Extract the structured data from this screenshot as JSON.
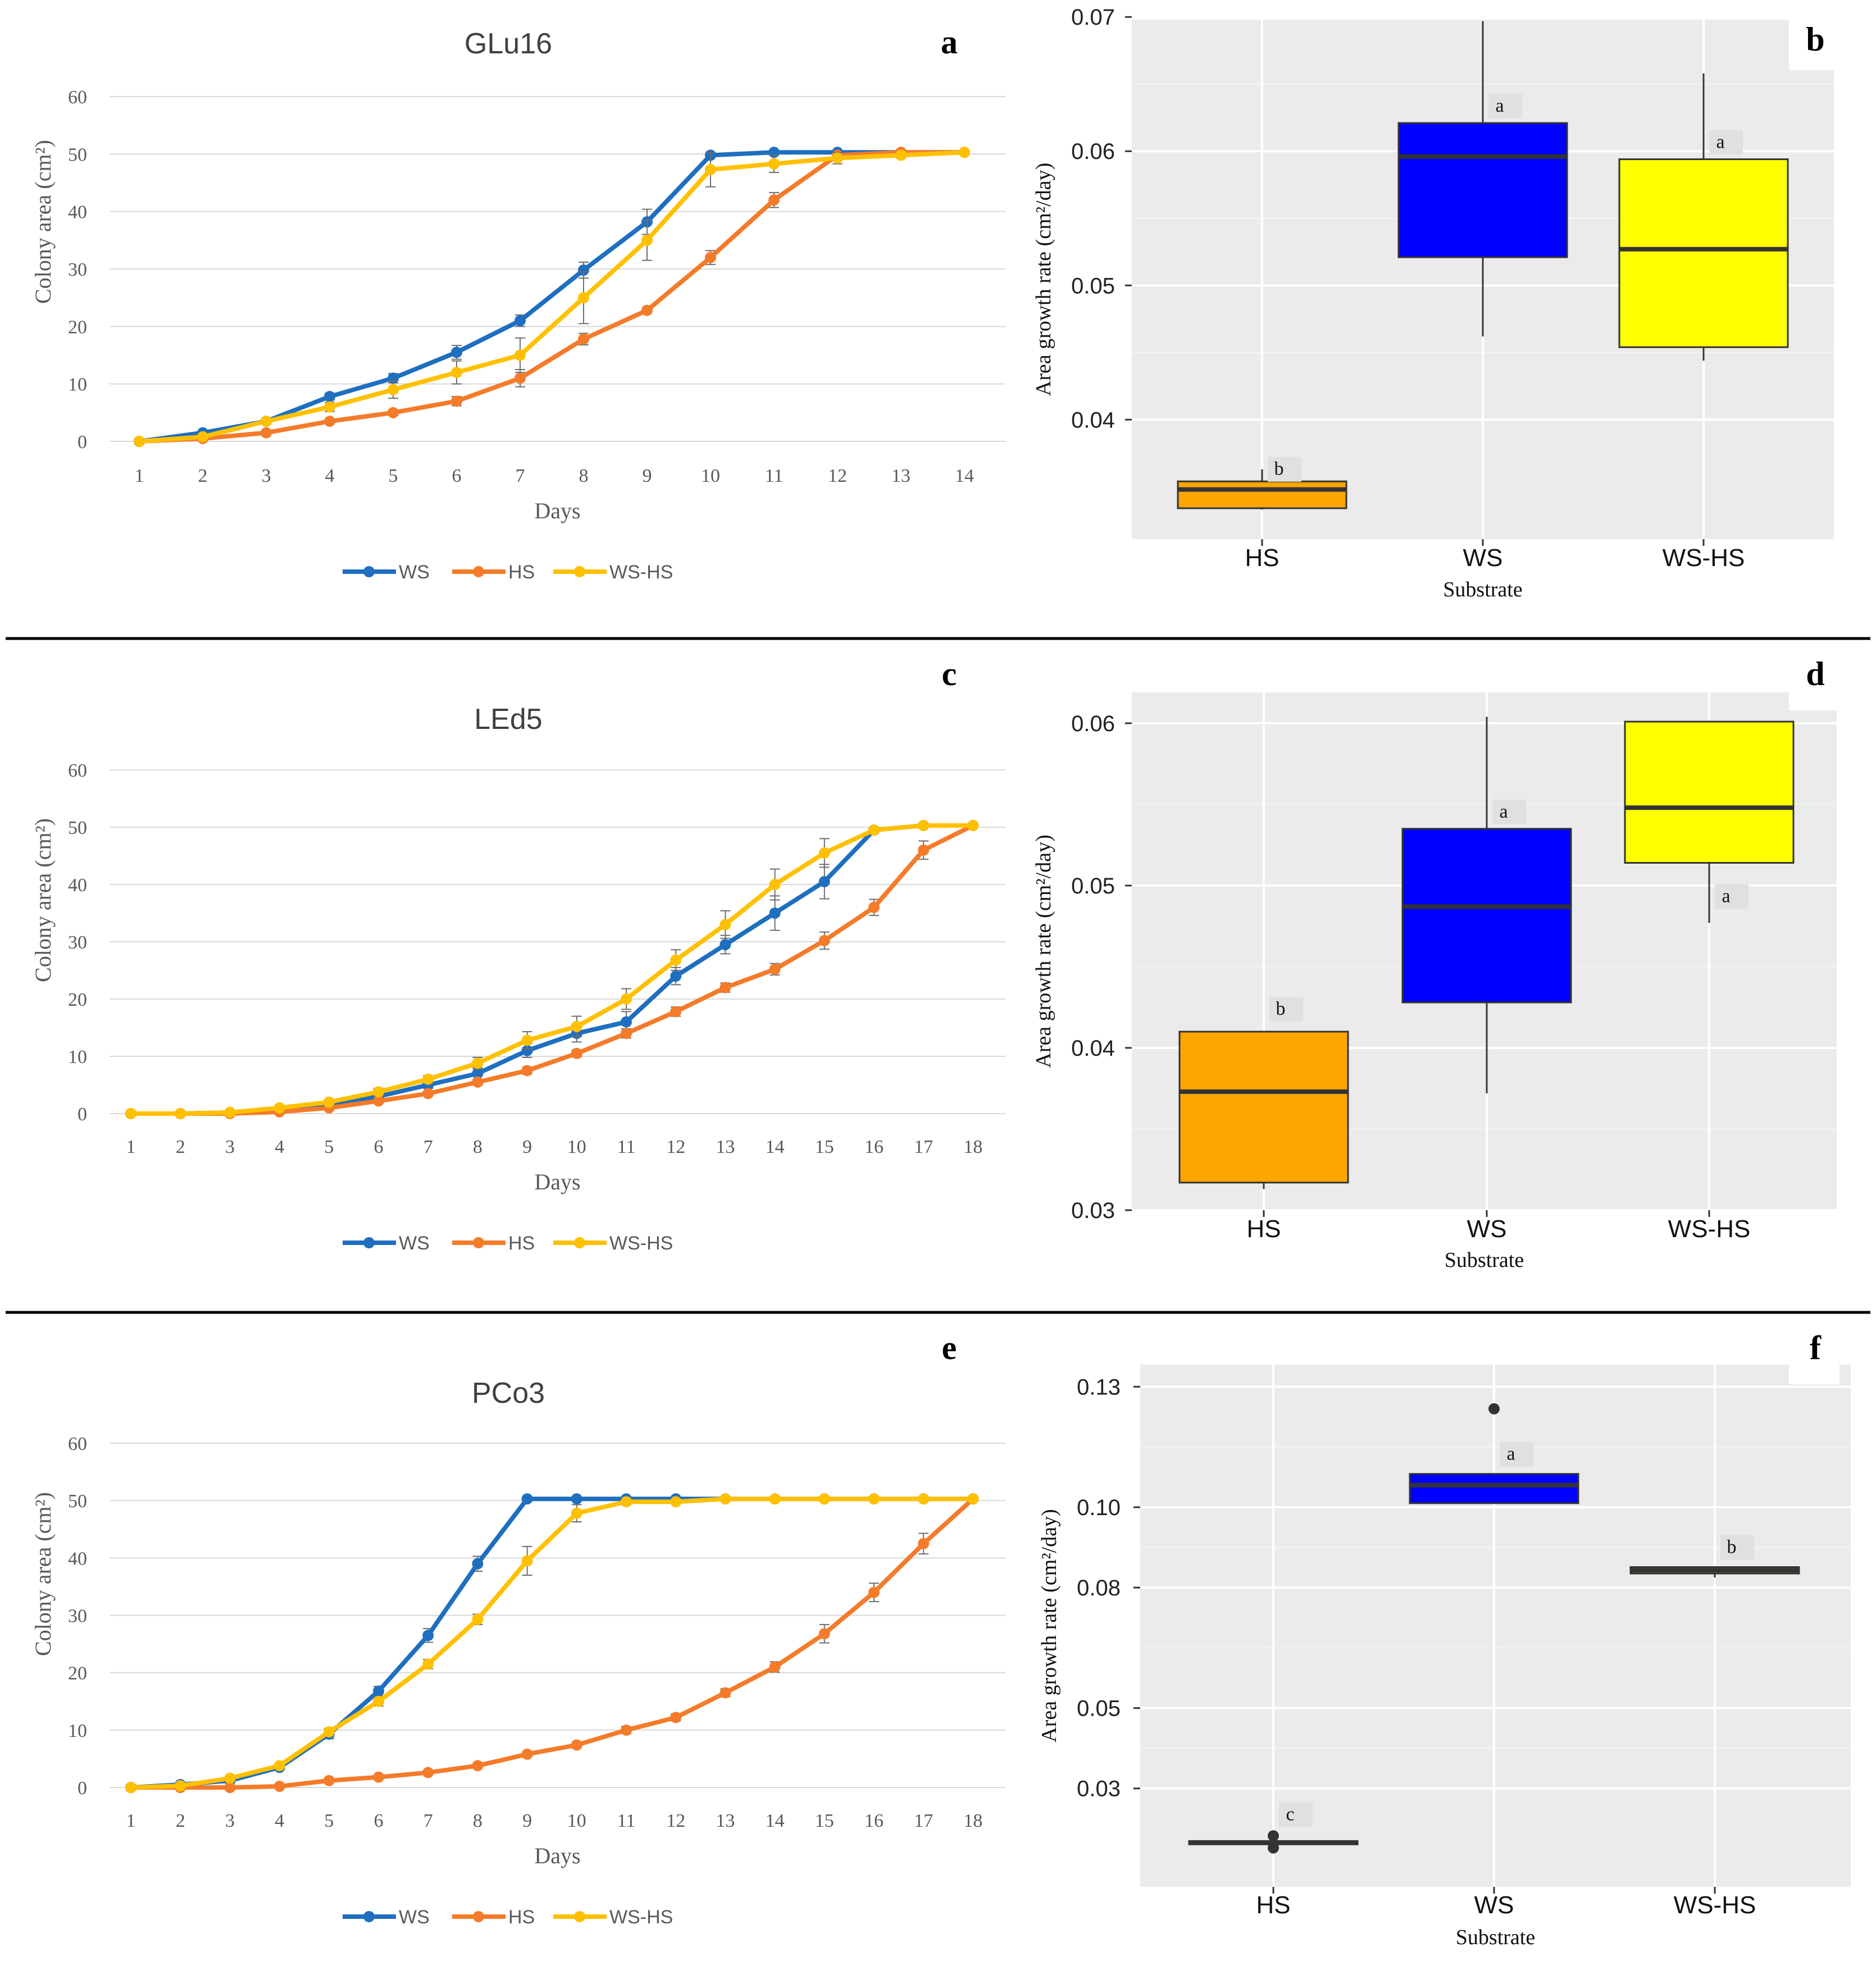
{
  "colors": {
    "WS": "#1f6fc0",
    "HS": "#f47b2a",
    "WS-HS": "#ffc000",
    "box_HS": "#ffa500",
    "box_WS": "#0000ff",
    "box_WSHS": "#ffff00",
    "box_WSHS_f": "#8b8b2a"
  },
  "chart_data": [
    {
      "panel": "a",
      "type": "line",
      "title": "GLu16",
      "xlabel": "Days",
      "ylabel": "Colony area (cm²)",
      "x": [
        1,
        2,
        3,
        4,
        5,
        6,
        7,
        8,
        9,
        10,
        11,
        12,
        13,
        14
      ],
      "ylim": [
        0,
        60
      ],
      "yticks": [
        0,
        10,
        20,
        30,
        40,
        50,
        60
      ],
      "series": [
        {
          "name": "WS",
          "values": [
            0,
            1.5,
            3.5,
            7.8,
            11,
            15.5,
            21,
            29.8,
            38.2,
            49.8,
            50.3,
            50.3,
            50.3,
            50.3
          ],
          "err": [
            0.5,
            0.3,
            0.4,
            0.6,
            0.8,
            1.2,
            1,
            1.4,
            2.2,
            0.3,
            0.2,
            0.2,
            0.2,
            0.2
          ]
        },
        {
          "name": "HS",
          "values": [
            0,
            0.5,
            1.5,
            3.5,
            5,
            7,
            11,
            17.8,
            22.8,
            32,
            42,
            49.8,
            50.3,
            50.3
          ],
          "err": [
            0.3,
            0.2,
            0.3,
            0.4,
            0.5,
            0.8,
            1.5,
            1,
            0.5,
            1.2,
            1.3,
            0.5,
            0.2,
            0.2
          ]
        },
        {
          "name": "WS-HS",
          "values": [
            0,
            0.8,
            3.5,
            6,
            9,
            12,
            15,
            25,
            35,
            47.3,
            48.3,
            49.3,
            49.8,
            50.3
          ],
          "err": [
            0.3,
            0.3,
            0.5,
            0.8,
            1.5,
            2,
            3,
            4.5,
            3.5,
            3,
            1.5,
            1,
            0.5,
            0.2
          ]
        }
      ]
    },
    {
      "panel": "b",
      "type": "box",
      "xlabel": "Substrate",
      "ylabel": "Area growth rate (cm²/day)",
      "ylim": [
        0.0311,
        0.0698
      ],
      "yticks": [
        0.04,
        0.05,
        0.06,
        0.07
      ],
      "ytick_labels": [
        "0.04",
        "0.05",
        "0.06",
        "0.07"
      ],
      "categories": [
        "HS",
        "WS",
        "WS-HS"
      ],
      "boxes": [
        {
          "name": "HS",
          "whisker_low": 0.0333,
          "q1": 0.0334,
          "median": 0.0348,
          "q3": 0.0354,
          "whisker_high": 0.0363,
          "letter": "b"
        },
        {
          "name": "WS",
          "whisker_low": 0.0462,
          "q1": 0.0521,
          "median": 0.0596,
          "q3": 0.0621,
          "whisker_high": 0.0697,
          "letter": "a"
        },
        {
          "name": "WS-HS",
          "whisker_low": 0.0444,
          "q1": 0.0454,
          "median": 0.0527,
          "q3": 0.0594,
          "whisker_high": 0.0658,
          "letter": "a"
        }
      ]
    },
    {
      "panel": "c",
      "type": "line",
      "title": "LEd5",
      "xlabel": "Days",
      "ylabel": "Colony area (cm²)",
      "x": [
        1,
        2,
        3,
        4,
        5,
        6,
        7,
        8,
        9,
        10,
        11,
        12,
        13,
        14,
        15,
        16,
        17,
        18
      ],
      "ylim": [
        0,
        60
      ],
      "yticks": [
        0,
        10,
        20,
        30,
        40,
        50,
        60
      ],
      "series": [
        {
          "name": "WS",
          "values": [
            0,
            0,
            0.2,
            0.8,
            1.5,
            3,
            5,
            7,
            11,
            14,
            16,
            24,
            29.5,
            35,
            40.5,
            49.5,
            50.3,
            50.3
          ],
          "err": [
            0.4,
            0.1,
            0.1,
            0.2,
            0.3,
            0.5,
            0.6,
            1,
            1.2,
            1.5,
            1.8,
            1.5,
            1.6,
            3,
            3,
            0.5,
            0.3,
            0.2
          ]
        },
        {
          "name": "HS",
          "values": [
            0,
            0,
            0,
            0.3,
            1,
            2.2,
            3.5,
            5.5,
            7.5,
            10.5,
            14,
            17.8,
            22,
            25.2,
            30.2,
            36,
            46,
            50.3
          ],
          "err": [
            0.1,
            0.1,
            0.1,
            0.2,
            0.2,
            0.3,
            0.4,
            0.5,
            0.6,
            0.6,
            0.8,
            0.8,
            0.8,
            1,
            1.5,
            1.4,
            1.6,
            0.3
          ]
        },
        {
          "name": "WS-HS",
          "values": [
            0,
            0,
            0.2,
            1,
            2,
            3.8,
            6,
            8.8,
            12.8,
            15.2,
            20,
            26.8,
            33,
            40,
            45.5,
            49.5,
            50.3,
            50.3
          ],
          "err": [
            0.1,
            0.1,
            0.1,
            0.3,
            0.4,
            0.6,
            0.6,
            1,
            1.5,
            1.8,
            1.8,
            1.8,
            2.4,
            2.7,
            2.5,
            0.5,
            0.3,
            0.2
          ]
        }
      ]
    },
    {
      "panel": "d",
      "type": "box",
      "xlabel": "Substrate",
      "ylabel": "Area growth rate (cm²/day)",
      "ylim": [
        0.03,
        0.0619
      ],
      "yticks": [
        0.03,
        0.04,
        0.05,
        0.06
      ],
      "ytick_labels": [
        "0.03",
        "0.04",
        "0.05",
        "0.06"
      ],
      "categories": [
        "HS",
        "WS",
        "WS-HS"
      ],
      "boxes": [
        {
          "name": "HS",
          "whisker_low": 0.0313,
          "q1": 0.0317,
          "median": 0.0373,
          "q3": 0.041,
          "whisker_high": 0.041,
          "letter": "b"
        },
        {
          "name": "WS",
          "whisker_low": 0.0372,
          "q1": 0.0428,
          "median": 0.0487,
          "q3": 0.0535,
          "whisker_high": 0.0604,
          "letter": "a"
        },
        {
          "name": "WS-HS",
          "whisker_low": 0.0477,
          "q1": 0.0514,
          "median": 0.0548,
          "q3": 0.0601,
          "whisker_high": 0.0601,
          "letter": "a"
        }
      ]
    },
    {
      "panel": "e",
      "type": "line",
      "title": "PCo3",
      "xlabel": "Days",
      "ylabel": "Colony area (cm²)",
      "x": [
        1,
        2,
        3,
        4,
        5,
        6,
        7,
        8,
        9,
        10,
        11,
        12,
        13,
        14,
        15,
        16,
        17,
        18
      ],
      "ylim": [
        0,
        60
      ],
      "yticks": [
        0,
        10,
        20,
        30,
        40,
        50,
        60
      ],
      "series": [
        {
          "name": "WS",
          "values": [
            0,
            0.5,
            1.2,
            3.5,
            9.3,
            16.8,
            26.5,
            39,
            50.3,
            50.3,
            50.3,
            50.3,
            50.3,
            50.3,
            50.3,
            50.3,
            50.3,
            50.3
          ],
          "err": [
            0.5,
            0.2,
            0.3,
            0.4,
            0.8,
            0.8,
            1.2,
            1.3,
            0.3,
            0.2,
            0.2,
            0.2,
            0.2,
            0.2,
            0.2,
            0.2,
            0.2,
            0.2
          ]
        },
        {
          "name": "HS",
          "values": [
            0,
            0,
            0,
            0.2,
            1.2,
            1.8,
            2.6,
            3.8,
            5.8,
            7.4,
            10,
            12.2,
            16.5,
            21,
            26.8,
            34,
            42.5,
            50.3
          ],
          "err": [
            0.1,
            0.1,
            0.1,
            0.1,
            0.2,
            0.2,
            0.3,
            0.3,
            0.4,
            0.5,
            0.6,
            0.6,
            0.7,
            0.9,
            1.6,
            1.6,
            1.8,
            0.3
          ]
        },
        {
          "name": "WS-HS",
          "values": [
            0,
            0.3,
            1.6,
            3.8,
            9.7,
            15,
            21.5,
            29.3,
            39.5,
            47.8,
            49.8,
            49.8,
            50.3,
            50.3,
            50.3,
            50.3,
            50.3,
            50.3
          ],
          "err": [
            0.1,
            0.1,
            0.3,
            0.4,
            0.6,
            0.8,
            0.8,
            0.9,
            2.5,
            1.5,
            0.5,
            0.4,
            0.2,
            0.2,
            0.2,
            0.2,
            0.2,
            0.2
          ]
        }
      ]
    },
    {
      "panel": "f",
      "type": "box",
      "xlabel": "Substrate",
      "ylabel": "Area growth rate (cm²/day)",
      "ylim": [
        0.0055,
        0.1355
      ],
      "yticks": [
        0.03,
        0.05,
        0.08,
        0.1,
        0.13
      ],
      "ytick_labels": [
        "0.03",
        "0.05",
        "0.08",
        "0.10",
        "0.13"
      ],
      "categories": [
        "HS",
        "WS",
        "WS-HS"
      ],
      "boxes": [
        {
          "name": "HS",
          "whisker_low": 0.0165,
          "q1": 0.0165,
          "median": 0.0165,
          "q3": 0.0165,
          "whisker_high": 0.0165,
          "outliers": [
            0.0182,
            0.0152
          ],
          "letter": "c"
        },
        {
          "name": "WS",
          "whisker_low": 0.101,
          "q1": 0.101,
          "median": 0.1055,
          "q3": 0.1083,
          "whisker_high": 0.1083,
          "outliers": [
            0.1245
          ],
          "letter": "a"
        },
        {
          "name": "WS-HS",
          "whisker_low": 0.0825,
          "q1": 0.0835,
          "median": 0.0843,
          "q3": 0.0851,
          "whisker_high": 0.0851,
          "letter": "b"
        }
      ]
    }
  ]
}
